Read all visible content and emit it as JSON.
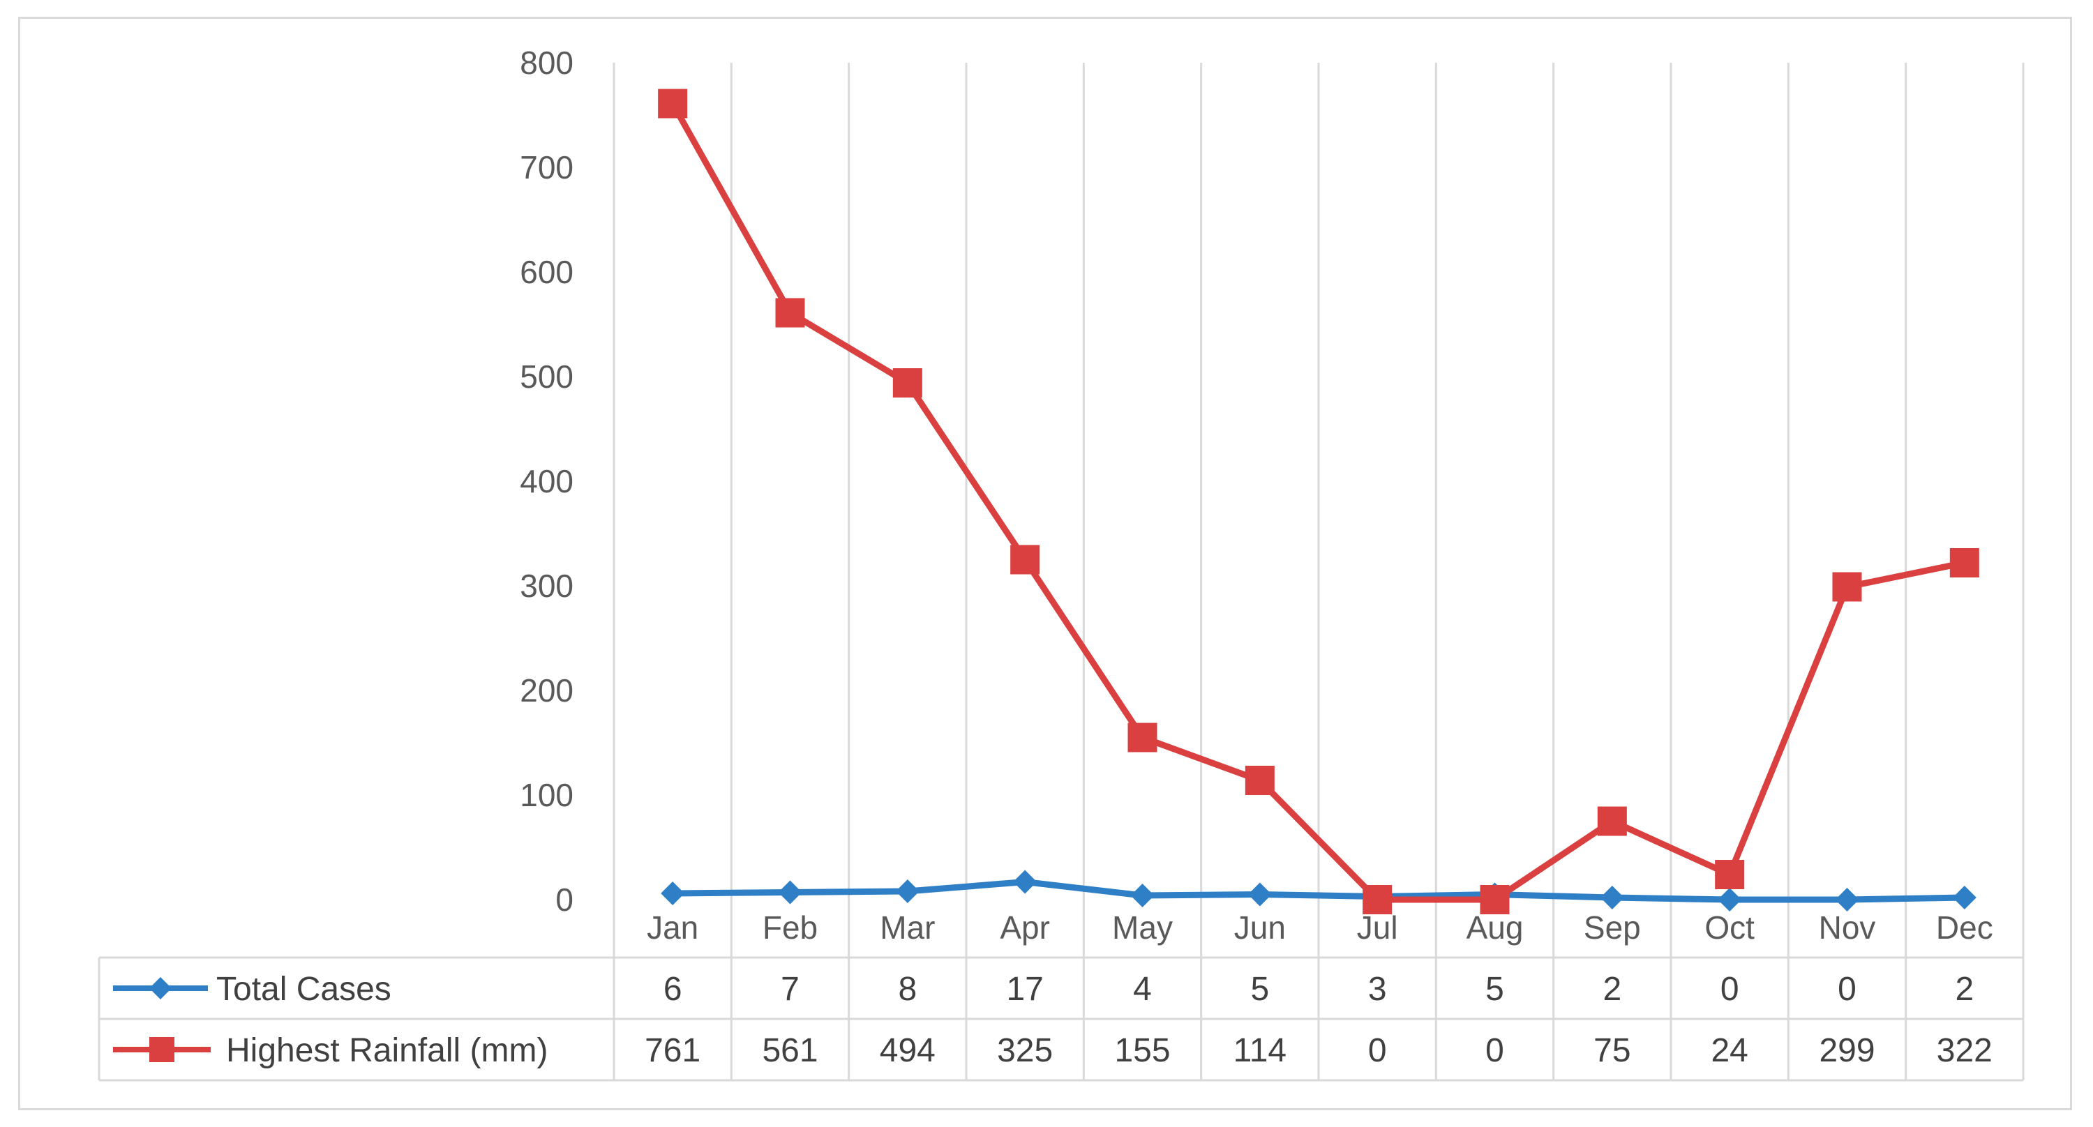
{
  "chart_data": {
    "type": "line",
    "categories": [
      "Jan",
      "Feb",
      "Mar",
      "Apr",
      "May",
      "Jun",
      "Jul",
      "Aug",
      "Sep",
      "Oct",
      "Nov",
      "Dec"
    ],
    "series": [
      {
        "name": "Total Cases",
        "values": [
          6,
          7,
          8,
          17,
          4,
          5,
          3,
          5,
          2,
          0,
          0,
          2
        ],
        "color": "#2e7fc6",
        "marker": "diamond"
      },
      {
        "name": "Highest Rainfall (mm)",
        "values": [
          761,
          561,
          494,
          325,
          155,
          114,
          0,
          0,
          75,
          24,
          299,
          322
        ],
        "color": "#d9403f",
        "marker": "square"
      }
    ],
    "ylim": [
      0,
      800
    ],
    "yticks": [
      0,
      100,
      200,
      300,
      400,
      500,
      600,
      700,
      800
    ],
    "grid": "vertical",
    "legend": "data-table-left",
    "data_table": true
  }
}
